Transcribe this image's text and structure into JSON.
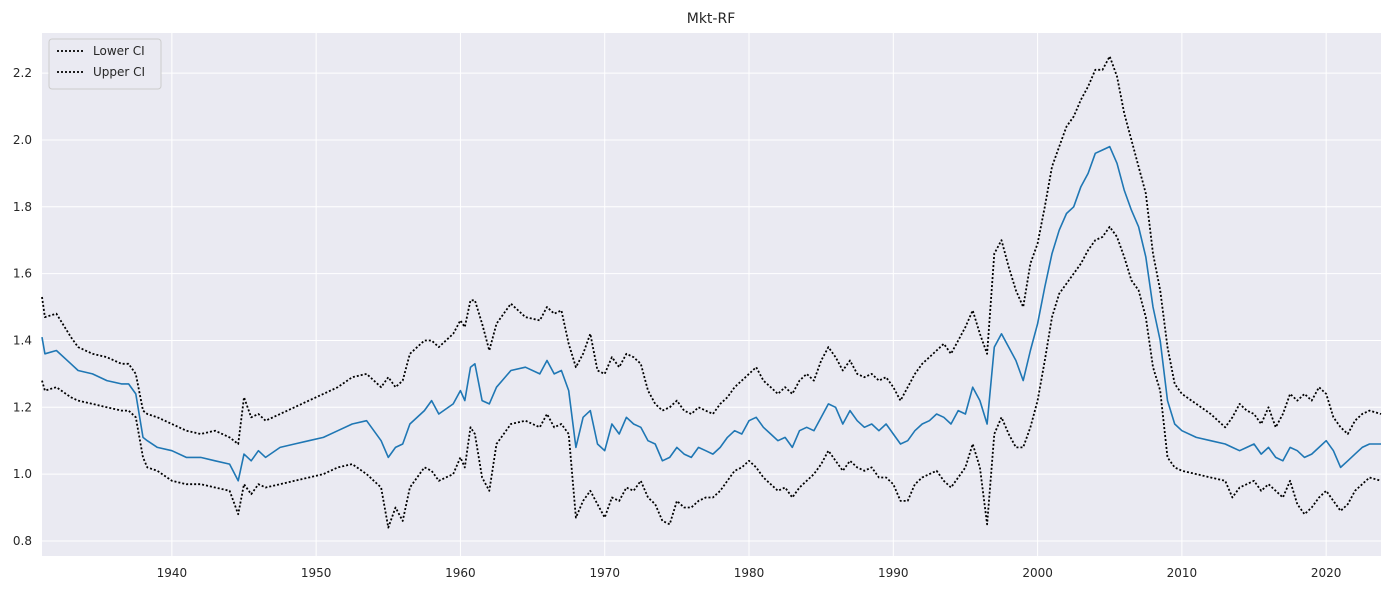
{
  "chart_data": {
    "type": "line",
    "title": "Mkt-RF",
    "xlabel": "",
    "ylabel": "",
    "xlim": [
      1931,
      2023.8
    ],
    "ylim": [
      0.755,
      2.32
    ],
    "xticks": [
      1940,
      1950,
      1960,
      1970,
      1980,
      1990,
      2000,
      2010,
      2020
    ],
    "yticks": [
      0.8,
      1.0,
      1.2,
      1.4,
      1.6,
      1.8,
      2.0,
      2.2
    ],
    "grid": true,
    "legend_position": "top-left",
    "background": "#eaeaf2",
    "series": [
      {
        "role": "estimate",
        "color": "#1f77b4",
        "style": "solid",
        "x": [
          1931.0,
          1931.2,
          1932.0,
          1933.0,
          1933.5,
          1934.5,
          1935.5,
          1936.5,
          1937.0,
          1937.5,
          1938.0,
          1938.3,
          1939.0,
          1940.0,
          1941.0,
          1942.0,
          1943.0,
          1944.0,
          1944.6,
          1945.0,
          1945.5,
          1946.0,
          1946.5,
          1947.5,
          1948.5,
          1949.5,
          1950.5,
          1951.5,
          1952.5,
          1953.5,
          1954.5,
          1955.0,
          1955.5,
          1956.0,
          1956.5,
          1957.5,
          1958.0,
          1958.5,
          1959.5,
          1960.0,
          1960.3,
          1960.7,
          1961.0,
          1961.5,
          1962.0,
          1962.5,
          1963.5,
          1964.5,
          1965.5,
          1966.0,
          1966.5,
          1967.0,
          1967.5,
          1968.0,
          1968.5,
          1969.0,
          1969.5,
          1970.0,
          1970.5,
          1971.0,
          1971.5,
          1972.0,
          1972.5,
          1973.0,
          1973.5,
          1974.0,
          1974.5,
          1975.0,
          1975.5,
          1976.0,
          1976.5,
          1977.0,
          1977.5,
          1978.0,
          1978.5,
          1979.0,
          1979.5,
          1980.0,
          1980.5,
          1981.0,
          1981.5,
          1982.0,
          1982.5,
          1983.0,
          1983.5,
          1984.0,
          1984.5,
          1985.0,
          1985.5,
          1986.0,
          1986.5,
          1987.0,
          1987.5,
          1988.0,
          1988.5,
          1989.0,
          1989.5,
          1990.0,
          1990.5,
          1991.0,
          1991.5,
          1992.0,
          1992.5,
          1993.0,
          1993.5,
          1994.0,
          1994.5,
          1995.0,
          1995.5,
          1996.0,
          1996.5,
          1997.0,
          1997.5,
          1998.0,
          1998.5,
          1999.0,
          1999.5,
          2000.0,
          2000.5,
          2001.0,
          2001.5,
          2002.0,
          2002.5,
          2003.0,
          2003.5,
          2004.0,
          2004.5,
          2005.0,
          2005.5,
          2006.0,
          2006.5,
          2007.0,
          2007.5,
          2008.0,
          2008.5,
          2009.0,
          2009.5,
          2010.0,
          2011.0,
          2012.0,
          2013.0,
          2013.5,
          2014.0,
          2014.5,
          2015.0,
          2015.5,
          2016.0,
          2016.5,
          2017.0,
          2017.5,
          2018.0,
          2018.5,
          2019.0,
          2019.5,
          2020.0,
          2020.5,
          2021.0,
          2021.5,
          2022.0,
          2022.5,
          2023.0,
          2023.8
        ],
        "y": [
          1.41,
          1.36,
          1.37,
          1.33,
          1.31,
          1.3,
          1.28,
          1.27,
          1.27,
          1.24,
          1.11,
          1.1,
          1.08,
          1.07,
          1.05,
          1.05,
          1.04,
          1.03,
          0.98,
          1.06,
          1.04,
          1.07,
          1.05,
          1.08,
          1.09,
          1.1,
          1.11,
          1.13,
          1.15,
          1.16,
          1.1,
          1.05,
          1.08,
          1.09,
          1.15,
          1.19,
          1.22,
          1.18,
          1.21,
          1.25,
          1.22,
          1.32,
          1.33,
          1.22,
          1.21,
          1.26,
          1.31,
          1.32,
          1.3,
          1.34,
          1.3,
          1.31,
          1.25,
          1.08,
          1.17,
          1.19,
          1.09,
          1.07,
          1.15,
          1.12,
          1.17,
          1.15,
          1.14,
          1.1,
          1.09,
          1.04,
          1.05,
          1.08,
          1.06,
          1.05,
          1.08,
          1.07,
          1.06,
          1.08,
          1.11,
          1.13,
          1.12,
          1.16,
          1.17,
          1.14,
          1.12,
          1.1,
          1.11,
          1.08,
          1.13,
          1.14,
          1.13,
          1.17,
          1.21,
          1.2,
          1.15,
          1.19,
          1.16,
          1.14,
          1.15,
          1.13,
          1.15,
          1.12,
          1.09,
          1.1,
          1.13,
          1.15,
          1.16,
          1.18,
          1.17,
          1.15,
          1.19,
          1.18,
          1.26,
          1.22,
          1.15,
          1.38,
          1.42,
          1.38,
          1.34,
          1.28,
          1.37,
          1.45,
          1.56,
          1.66,
          1.73,
          1.78,
          1.8,
          1.86,
          1.9,
          1.96,
          1.97,
          1.98,
          1.93,
          1.85,
          1.79,
          1.74,
          1.65,
          1.5,
          1.4,
          1.22,
          1.15,
          1.13,
          1.11,
          1.1,
          1.09,
          1.08,
          1.07,
          1.08,
          1.09,
          1.06,
          1.08,
          1.05,
          1.04,
          1.08,
          1.07,
          1.05,
          1.06,
          1.08,
          1.1,
          1.07,
          1.02,
          1.04,
          1.06,
          1.08,
          1.09,
          1.09
        ]
      },
      {
        "name": "Lower CI",
        "color": "#000000",
        "style": "dotted",
        "x": [
          1931.0,
          1931.2,
          1932.0,
          1933.0,
          1933.5,
          1934.5,
          1935.5,
          1936.5,
          1937.0,
          1937.5,
          1938.0,
          1938.3,
          1939.0,
          1940.0,
          1941.0,
          1942.0,
          1943.0,
          1944.0,
          1944.6,
          1945.0,
          1945.5,
          1946.0,
          1946.5,
          1947.5,
          1948.5,
          1949.5,
          1950.5,
          1951.5,
          1952.5,
          1953.5,
          1954.5,
          1955.0,
          1955.5,
          1956.0,
          1956.5,
          1957.5,
          1958.0,
          1958.5,
          1959.5,
          1960.0,
          1960.3,
          1960.7,
          1961.0,
          1961.5,
          1962.0,
          1962.5,
          1963.5,
          1964.5,
          1965.5,
          1966.0,
          1966.5,
          1967.0,
          1967.5,
          1968.0,
          1968.5,
          1969.0,
          1969.5,
          1970.0,
          1970.5,
          1971.0,
          1971.5,
          1972.0,
          1972.5,
          1973.0,
          1973.5,
          1974.0,
          1974.5,
          1975.0,
          1975.5,
          1976.0,
          1976.5,
          1977.0,
          1977.5,
          1978.0,
          1978.5,
          1979.0,
          1979.5,
          1980.0,
          1980.5,
          1981.0,
          1981.5,
          1982.0,
          1982.5,
          1983.0,
          1983.5,
          1984.0,
          1984.5,
          1985.0,
          1985.5,
          1986.0,
          1986.5,
          1987.0,
          1987.5,
          1988.0,
          1988.5,
          1989.0,
          1989.5,
          1990.0,
          1990.5,
          1991.0,
          1991.5,
          1992.0,
          1992.5,
          1993.0,
          1993.5,
          1994.0,
          1994.5,
          1995.0,
          1995.5,
          1996.0,
          1996.5,
          1997.0,
          1997.5,
          1998.0,
          1998.5,
          1999.0,
          1999.5,
          2000.0,
          2000.5,
          2001.0,
          2001.5,
          2002.0,
          2002.5,
          2003.0,
          2003.5,
          2004.0,
          2004.5,
          2005.0,
          2005.5,
          2006.0,
          2006.5,
          2007.0,
          2007.5,
          2008.0,
          2008.5,
          2009.0,
          2009.5,
          2010.0,
          2011.0,
          2012.0,
          2013.0,
          2013.5,
          2014.0,
          2014.5,
          2015.0,
          2015.5,
          2016.0,
          2016.5,
          2017.0,
          2017.5,
          2018.0,
          2018.5,
          2019.0,
          2019.5,
          2020.0,
          2020.5,
          2021.0,
          2021.5,
          2022.0,
          2022.5,
          2023.0,
          2023.8
        ],
        "y": [
          1.28,
          1.25,
          1.26,
          1.23,
          1.22,
          1.21,
          1.2,
          1.19,
          1.19,
          1.17,
          1.05,
          1.02,
          1.01,
          0.98,
          0.97,
          0.97,
          0.96,
          0.95,
          0.88,
          0.97,
          0.94,
          0.97,
          0.96,
          0.97,
          0.98,
          0.99,
          1.0,
          1.02,
          1.03,
          1.0,
          0.96,
          0.84,
          0.9,
          0.86,
          0.96,
          1.02,
          1.01,
          0.98,
          1.0,
          1.05,
          1.02,
          1.14,
          1.12,
          0.99,
          0.95,
          1.09,
          1.15,
          1.16,
          1.14,
          1.18,
          1.14,
          1.15,
          1.12,
          0.87,
          0.92,
          0.95,
          0.91,
          0.87,
          0.93,
          0.92,
          0.96,
          0.95,
          0.98,
          0.93,
          0.91,
          0.86,
          0.85,
          0.92,
          0.9,
          0.9,
          0.92,
          0.93,
          0.93,
          0.95,
          0.98,
          1.01,
          1.02,
          1.04,
          1.02,
          0.99,
          0.97,
          0.95,
          0.96,
          0.93,
          0.96,
          0.98,
          1.0,
          1.03,
          1.07,
          1.04,
          1.01,
          1.04,
          1.02,
          1.01,
          1.02,
          0.99,
          0.99,
          0.97,
          0.92,
          0.92,
          0.97,
          0.99,
          1.0,
          1.01,
          0.98,
          0.96,
          0.99,
          1.02,
          1.09,
          1.02,
          0.85,
          1.12,
          1.17,
          1.12,
          1.08,
          1.08,
          1.14,
          1.22,
          1.34,
          1.47,
          1.54,
          1.57,
          1.6,
          1.63,
          1.67,
          1.7,
          1.71,
          1.74,
          1.71,
          1.65,
          1.58,
          1.55,
          1.47,
          1.32,
          1.25,
          1.05,
          1.02,
          1.01,
          1.0,
          0.99,
          0.98,
          0.93,
          0.96,
          0.97,
          0.98,
          0.95,
          0.97,
          0.95,
          0.93,
          0.98,
          0.91,
          0.88,
          0.9,
          0.93,
          0.95,
          0.92,
          0.89,
          0.91,
          0.95,
          0.97,
          0.99,
          0.98
        ]
      },
      {
        "name": "Upper CI",
        "color": "#000000",
        "style": "dotted",
        "x": [
          1931.0,
          1931.2,
          1932.0,
          1933.0,
          1933.5,
          1934.5,
          1935.5,
          1936.5,
          1937.0,
          1937.5,
          1938.0,
          1938.3,
          1939.0,
          1940.0,
          1941.0,
          1942.0,
          1943.0,
          1944.0,
          1944.6,
          1945.0,
          1945.5,
          1946.0,
          1946.5,
          1947.5,
          1948.5,
          1949.5,
          1950.5,
          1951.5,
          1952.5,
          1953.5,
          1954.5,
          1955.0,
          1955.5,
          1956.0,
          1956.5,
          1957.5,
          1958.0,
          1958.5,
          1959.5,
          1960.0,
          1960.3,
          1960.7,
          1961.0,
          1961.5,
          1962.0,
          1962.5,
          1963.5,
          1964.5,
          1965.5,
          1966.0,
          1966.5,
          1967.0,
          1967.5,
          1968.0,
          1968.5,
          1969.0,
          1969.5,
          1970.0,
          1970.5,
          1971.0,
          1971.5,
          1972.0,
          1972.5,
          1973.0,
          1973.5,
          1974.0,
          1974.5,
          1975.0,
          1975.5,
          1976.0,
          1976.5,
          1977.0,
          1977.5,
          1978.0,
          1978.5,
          1979.0,
          1979.5,
          1980.0,
          1980.5,
          1981.0,
          1981.5,
          1982.0,
          1982.5,
          1983.0,
          1983.5,
          1984.0,
          1984.5,
          1985.0,
          1985.5,
          1986.0,
          1986.5,
          1987.0,
          1987.5,
          1988.0,
          1988.5,
          1989.0,
          1989.5,
          1990.0,
          1990.5,
          1991.0,
          1991.5,
          1992.0,
          1992.5,
          1993.0,
          1993.5,
          1994.0,
          1994.5,
          1995.0,
          1995.5,
          1996.0,
          1996.5,
          1997.0,
          1997.5,
          1998.0,
          1998.5,
          1999.0,
          1999.5,
          2000.0,
          2000.5,
          2001.0,
          2001.5,
          2002.0,
          2002.5,
          2003.0,
          2003.5,
          2004.0,
          2004.5,
          2005.0,
          2005.5,
          2006.0,
          2006.5,
          2007.0,
          2007.5,
          2008.0,
          2008.5,
          2009.0,
          2009.5,
          2010.0,
          2011.0,
          2012.0,
          2013.0,
          2013.5,
          2014.0,
          2014.5,
          2015.0,
          2015.5,
          2016.0,
          2016.5,
          2017.0,
          2017.5,
          2018.0,
          2018.5,
          2019.0,
          2019.5,
          2020.0,
          2020.5,
          2021.0,
          2021.5,
          2022.0,
          2022.5,
          2023.0,
          2023.8
        ],
        "y": [
          1.53,
          1.47,
          1.48,
          1.41,
          1.38,
          1.36,
          1.35,
          1.33,
          1.33,
          1.3,
          1.19,
          1.18,
          1.17,
          1.15,
          1.13,
          1.12,
          1.13,
          1.11,
          1.09,
          1.23,
          1.17,
          1.18,
          1.16,
          1.18,
          1.2,
          1.22,
          1.24,
          1.26,
          1.29,
          1.3,
          1.26,
          1.29,
          1.26,
          1.28,
          1.36,
          1.4,
          1.4,
          1.38,
          1.42,
          1.46,
          1.44,
          1.52,
          1.52,
          1.45,
          1.37,
          1.45,
          1.51,
          1.47,
          1.46,
          1.5,
          1.48,
          1.49,
          1.39,
          1.32,
          1.36,
          1.42,
          1.31,
          1.3,
          1.35,
          1.32,
          1.36,
          1.35,
          1.33,
          1.25,
          1.21,
          1.19,
          1.2,
          1.22,
          1.19,
          1.18,
          1.2,
          1.19,
          1.18,
          1.21,
          1.23,
          1.26,
          1.28,
          1.3,
          1.32,
          1.28,
          1.26,
          1.24,
          1.26,
          1.24,
          1.28,
          1.3,
          1.28,
          1.34,
          1.38,
          1.35,
          1.31,
          1.34,
          1.3,
          1.29,
          1.3,
          1.28,
          1.29,
          1.26,
          1.22,
          1.26,
          1.3,
          1.33,
          1.35,
          1.37,
          1.39,
          1.36,
          1.4,
          1.44,
          1.49,
          1.42,
          1.36,
          1.66,
          1.7,
          1.62,
          1.55,
          1.5,
          1.63,
          1.69,
          1.8,
          1.92,
          1.98,
          2.04,
          2.07,
          2.12,
          2.16,
          2.21,
          2.21,
          2.25,
          2.19,
          2.08,
          2.0,
          1.92,
          1.84,
          1.66,
          1.55,
          1.38,
          1.27,
          1.24,
          1.21,
          1.18,
          1.14,
          1.17,
          1.21,
          1.19,
          1.18,
          1.15,
          1.2,
          1.14,
          1.18,
          1.24,
          1.22,
          1.24,
          1.22,
          1.26,
          1.24,
          1.17,
          1.14,
          1.12,
          1.16,
          1.18,
          1.19,
          1.18
        ]
      }
    ]
  }
}
